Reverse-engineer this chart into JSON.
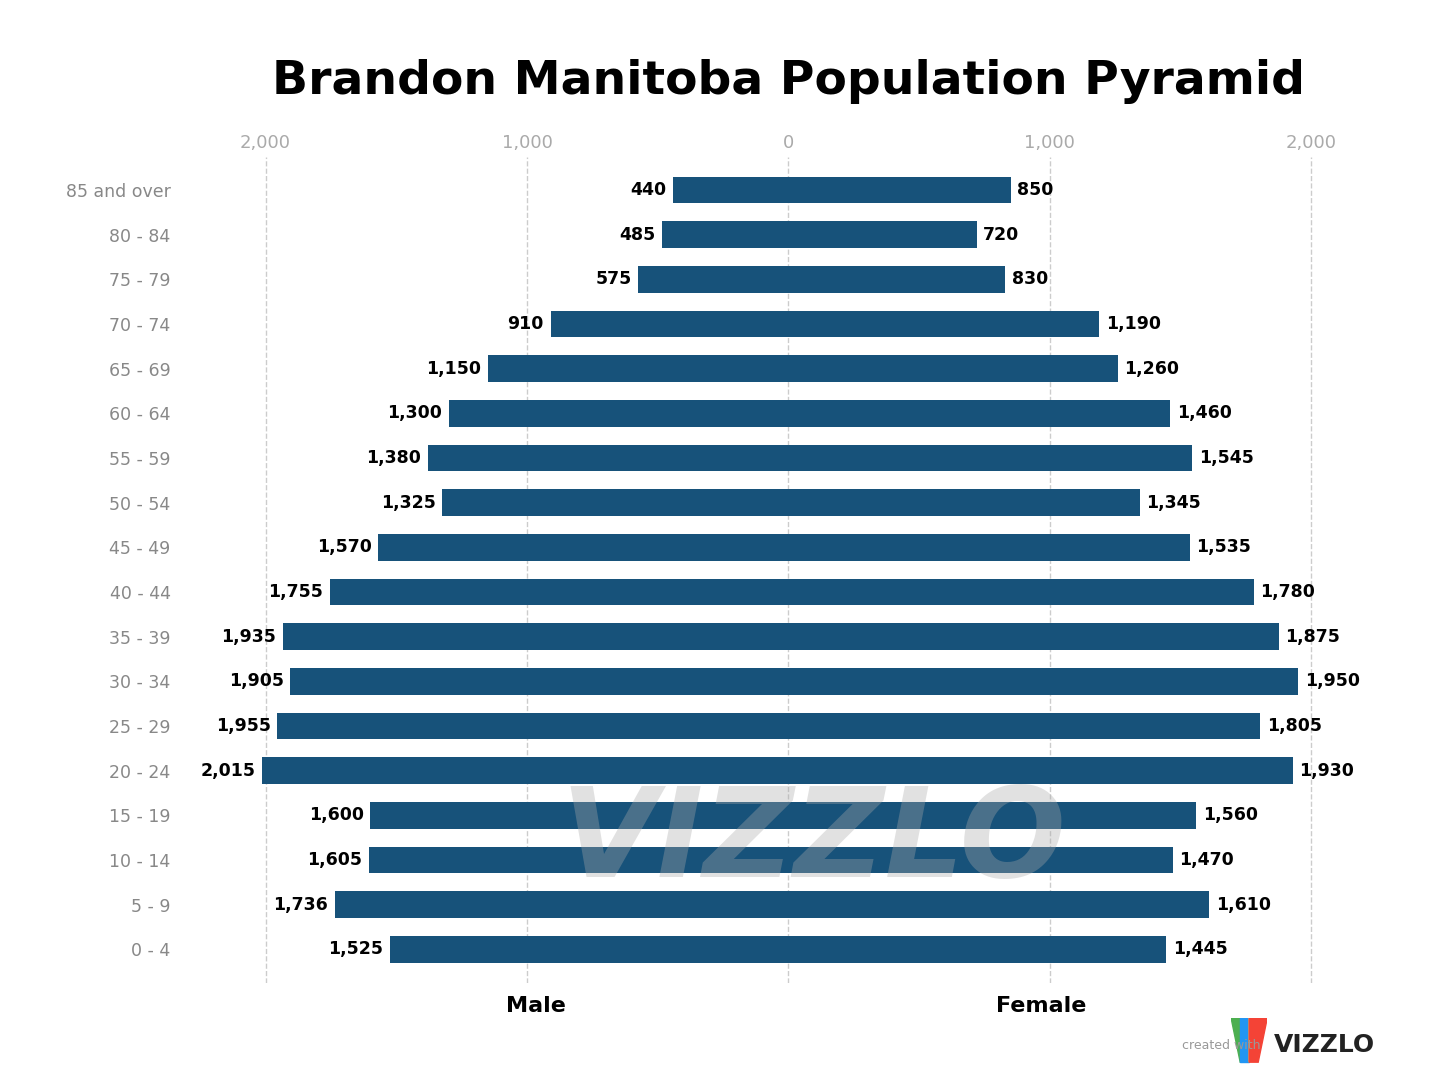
{
  "title": "Brandon Manitoba Population Pyramid",
  "age_groups": [
    "0 - 4",
    "5 - 9",
    "10 - 14",
    "15 - 19",
    "20 - 24",
    "25 - 29",
    "30 - 34",
    "35 - 39",
    "40 - 44",
    "45 - 49",
    "50 - 54",
    "55 - 59",
    "60 - 64",
    "65 - 69",
    "70 - 74",
    "75 - 79",
    "80 - 84",
    "85 and over"
  ],
  "male": [
    1525,
    1736,
    1605,
    1600,
    2015,
    1955,
    1905,
    1935,
    1755,
    1570,
    1325,
    1380,
    1300,
    1150,
    910,
    575,
    485,
    440
  ],
  "female": [
    1445,
    1610,
    1470,
    1560,
    1930,
    1805,
    1950,
    1875,
    1780,
    1535,
    1345,
    1545,
    1460,
    1260,
    1190,
    830,
    720,
    850
  ],
  "bar_color": "#17527a",
  "bg_color": "#ffffff",
  "label_color": "#888888",
  "axis_label_color": "#aaaaaa",
  "grid_color": "#cccccc",
  "title_fontsize": 34,
  "label_fontsize": 12.5,
  "tick_fontsize": 13,
  "value_fontsize": 12.5,
  "xlim": 2300,
  "male_label": "Male",
  "female_label": "Female",
  "bar_height": 0.6,
  "vizzlo_watermark": "VIZZLO"
}
